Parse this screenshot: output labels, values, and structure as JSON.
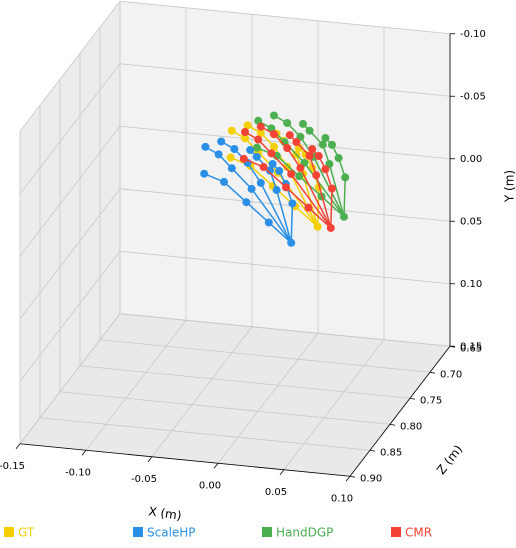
{
  "chart_data": {
    "type": "scatter3d",
    "xlabel": "X (m)",
    "ylabel": "Y (m)",
    "zlabel": "Z (m)",
    "xlim": [
      -0.15,
      0.1
    ],
    "ylim": [
      -0.1,
      0.15
    ],
    "zlim": [
      0.65,
      0.9
    ],
    "y_inverted": true,
    "grid": true,
    "xticks": [
      -0.15,
      {
        "value": -0.1,
        "label": "-0.10"
      },
      -0.05,
      {
        "value": 0,
        "label": "0.00"
      },
      0.05,
      {
        "value": 0.1,
        "label": "0.10"
      }
    ],
    "yticks": [
      {
        "value": -0.1,
        "label": "-0.10"
      },
      -0.05,
      {
        "value": 0,
        "label": "0.00"
      },
      0.05,
      {
        "value": 0.1,
        "label": "0.10"
      },
      0.15
    ],
    "zticks": [
      0.65,
      {
        "value": 0.7,
        "label": "0.70"
      },
      0.75,
      {
        "value": 0.8,
        "label": "0.80"
      },
      0.85,
      {
        "value": 0.9,
        "label": "0.90"
      }
    ],
    "legend": "bottom",
    "series": [
      {
        "name": "GT",
        "color": "#f5d000",
        "x": [
          0.03,
          0.01,
          -0.01,
          -0.03,
          -0.045,
          0.0,
          -0.015,
          -0.025,
          -0.035,
          0.01,
          0.0,
          -0.01,
          -0.02,
          0.025,
          0.02,
          0.01,
          0.005,
          0.04,
          0.035,
          0.03,
          0.025
        ],
        "y": [
          0.02,
          0.01,
          0.0,
          -0.01,
          -0.015,
          -0.02,
          -0.035,
          -0.045,
          -0.05,
          -0.03,
          -0.045,
          -0.055,
          -0.06,
          -0.03,
          -0.045,
          -0.055,
          -0.06,
          -0.025,
          -0.04,
          -0.05,
          -0.055
        ],
        "z": [
          0.75,
          0.74,
          0.73,
          0.72,
          0.72,
          0.75,
          0.75,
          0.75,
          0.75,
          0.76,
          0.76,
          0.76,
          0.76,
          0.77,
          0.77,
          0.77,
          0.77,
          0.78,
          0.78,
          0.78,
          0.78
        ]
      },
      {
        "name": "ScaleHP",
        "color": "#2a8fe6",
        "x": [
          0.01,
          -0.01,
          -0.03,
          -0.05,
          -0.065,
          -0.02,
          -0.035,
          -0.045,
          -0.055,
          -0.01,
          -0.02,
          -0.03,
          -0.04,
          0.005,
          0.0,
          -0.01,
          -0.015,
          0.02,
          0.015,
          0.01,
          0.005
        ],
        "y": [
          0.035,
          0.025,
          0.015,
          0.005,
          0.0,
          -0.005,
          -0.02,
          -0.03,
          -0.035,
          -0.015,
          -0.03,
          -0.04,
          -0.045,
          -0.015,
          -0.03,
          -0.04,
          -0.045,
          -0.01,
          -0.025,
          -0.035,
          -0.04
        ],
        "z": [
          0.75,
          0.74,
          0.73,
          0.72,
          0.72,
          0.75,
          0.75,
          0.75,
          0.75,
          0.76,
          0.76,
          0.76,
          0.76,
          0.77,
          0.77,
          0.77,
          0.77,
          0.78,
          0.78,
          0.78,
          0.78
        ]
      },
      {
        "name": "HandDGP",
        "color": "#4caf50",
        "x": [
          0.05,
          0.03,
          0.01,
          -0.01,
          -0.025,
          0.02,
          0.005,
          -0.005,
          -0.015,
          0.03,
          0.02,
          0.01,
          0.0,
          0.045,
          0.04,
          0.03,
          0.025,
          0.06,
          0.055,
          0.05,
          0.045
        ],
        "y": [
          0.01,
          0.0,
          -0.01,
          -0.02,
          -0.025,
          -0.03,
          -0.045,
          -0.055,
          -0.06,
          -0.04,
          -0.055,
          -0.065,
          -0.07,
          -0.04,
          -0.055,
          -0.065,
          -0.07,
          -0.035,
          -0.05,
          -0.06,
          -0.065
        ],
        "z": [
          0.75,
          0.74,
          0.73,
          0.72,
          0.72,
          0.75,
          0.75,
          0.75,
          0.75,
          0.76,
          0.76,
          0.76,
          0.76,
          0.77,
          0.77,
          0.77,
          0.77,
          0.78,
          0.78,
          0.78,
          0.78
        ]
      },
      {
        "name": "CMR",
        "color": "#f44336",
        "x": [
          0.04,
          0.02,
          0.0,
          -0.02,
          -0.035,
          0.01,
          -0.005,
          -0.015,
          -0.025,
          0.02,
          0.01,
          0.0,
          -0.01,
          0.035,
          0.03,
          0.02,
          0.015,
          0.05,
          0.045,
          0.04,
          0.035
        ],
        "y": [
          0.02,
          0.01,
          0.0,
          -0.01,
          -0.015,
          -0.02,
          -0.035,
          -0.045,
          -0.05,
          -0.03,
          -0.045,
          -0.055,
          -0.06,
          -0.03,
          -0.045,
          -0.055,
          -0.06,
          -0.025,
          -0.04,
          -0.05,
          -0.055
        ],
        "z": [
          0.75,
          0.74,
          0.73,
          0.72,
          0.72,
          0.75,
          0.75,
          0.75,
          0.75,
          0.76,
          0.76,
          0.76,
          0.76,
          0.77,
          0.77,
          0.77,
          0.77,
          0.78,
          0.78,
          0.78,
          0.78
        ]
      }
    ]
  }
}
